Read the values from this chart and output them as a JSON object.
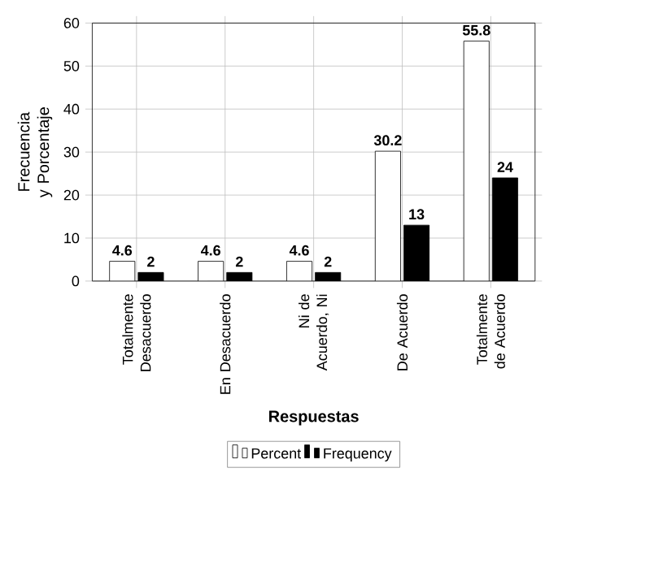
{
  "chart_data": {
    "type": "bar",
    "xlabel": "Respuestas",
    "ylabel": "Frecuencia y Porcentaje",
    "categories": [
      "Totalmente Desacuerdo",
      "En Desacuerdo",
      "Ni de Acuerdo, Ni",
      "De Acuerdo",
      "Totalmente de Acuerdo"
    ],
    "series": [
      {
        "name": "Percent",
        "color": "#ffffff",
        "values": [
          4.6,
          4.6,
          4.6,
          30.2,
          55.8
        ]
      },
      {
        "name": "Frequency",
        "color": "#000000",
        "values": [
          2,
          2,
          2,
          13,
          24
        ]
      }
    ],
    "ylim": [
      0,
      60
    ],
    "yticks": [
      0,
      10,
      20,
      30,
      40,
      50,
      60
    ],
    "grid": true,
    "legend": "bottom",
    "data_labels": true
  }
}
